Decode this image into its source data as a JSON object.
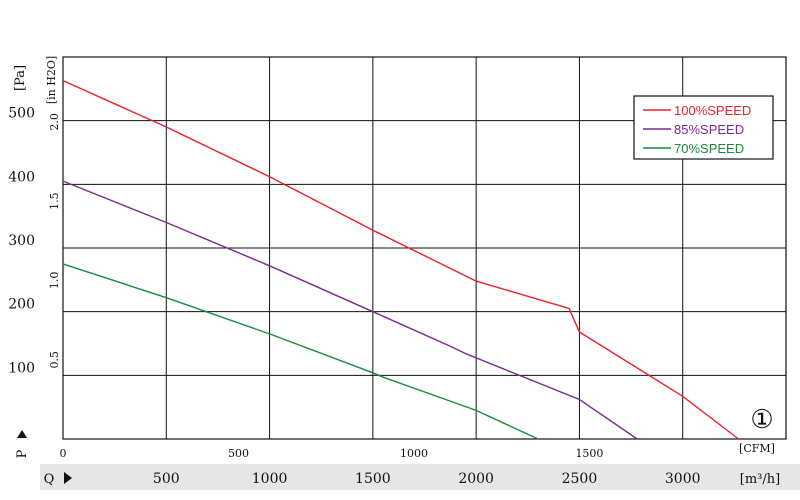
{
  "chart_data": {
    "type": "line",
    "x_primary": {
      "unit_label": "[m³/h]",
      "prefix_label": "Q",
      "ticks": [
        "500",
        "1000",
        "1500",
        "2000",
        "2500",
        "3000"
      ],
      "range": [
        0,
        3500
      ]
    },
    "x_secondary": {
      "unit_label": "[CFM]",
      "ticks": [
        "0",
        "500",
        "1000",
        "1500"
      ]
    },
    "y_primary": {
      "unit_label": "[Pa]",
      "prefix_label": "P",
      "ticks": [
        "100",
        "200",
        "300",
        "400",
        "500"
      ],
      "range": [
        0,
        600
      ]
    },
    "y_secondary": {
      "unit_label": "[in H2O]",
      "ticks": [
        "0.5",
        "1.0",
        "1.5",
        "2.0"
      ]
    },
    "marker": "①",
    "series": [
      {
        "name": "100%SPEED",
        "color": "#e8212e",
        "points": [
          [
            0,
            563
          ],
          [
            500,
            490
          ],
          [
            1000,
            412
          ],
          [
            1500,
            328
          ],
          [
            2000,
            248
          ],
          [
            2450,
            205
          ],
          [
            2500,
            168
          ],
          [
            3000,
            67
          ],
          [
            3270,
            0
          ]
        ]
      },
      {
        "name": "85%SPEED",
        "color": "#7b2a92",
        "points": [
          [
            0,
            405
          ],
          [
            500,
            340
          ],
          [
            1000,
            272
          ],
          [
            1500,
            200
          ],
          [
            1880,
            145
          ],
          [
            1950,
            134
          ],
          [
            2500,
            62
          ],
          [
            2780,
            0
          ]
        ]
      },
      {
        "name": "70%SPEED",
        "color": "#1a8a3e",
        "points": [
          [
            0,
            275
          ],
          [
            500,
            222
          ],
          [
            1000,
            165
          ],
          [
            1500,
            104
          ],
          [
            1550,
            97
          ],
          [
            2000,
            45
          ],
          [
            2300,
            0
          ]
        ]
      }
    ],
    "grid": true,
    "legend_position": "top-right"
  }
}
